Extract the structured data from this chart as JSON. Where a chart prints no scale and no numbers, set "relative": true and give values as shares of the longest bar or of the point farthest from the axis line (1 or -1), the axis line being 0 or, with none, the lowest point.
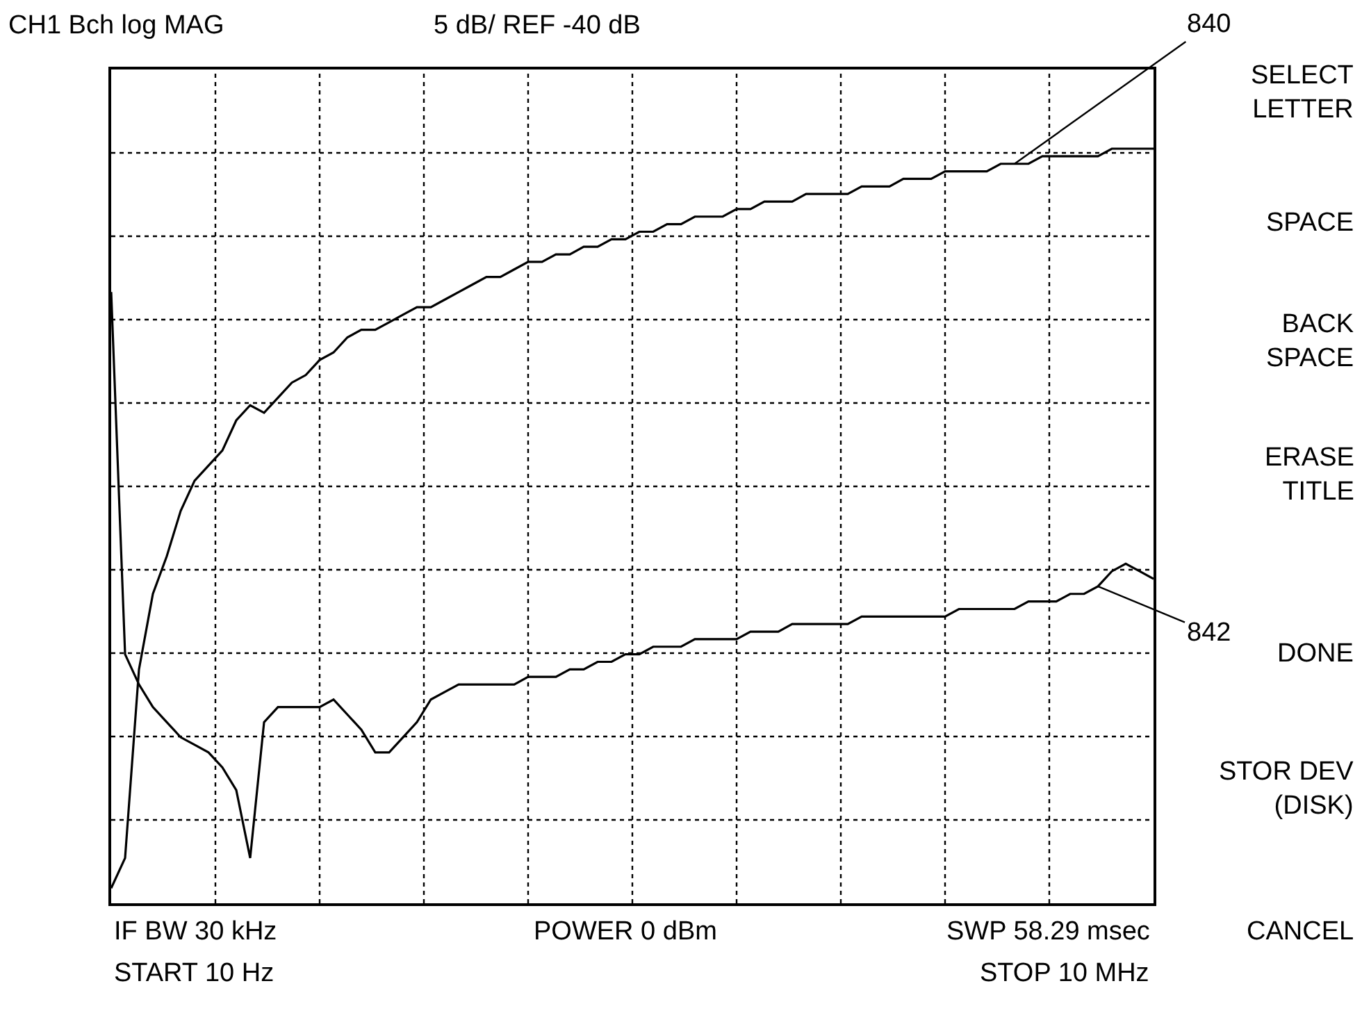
{
  "chart_data": {
    "type": "line",
    "relative": true,
    "grid": true,
    "legend": false,
    "marker": "none",
    "line_style": "solid",
    "title": "CH1 Bch log MAG",
    "subtitle": "5 dB/ REF -40 dB",
    "categories": [
      null,
      null,
      null,
      null,
      null,
      null,
      null,
      null,
      null,
      null,
      null,
      null,
      null,
      null,
      null,
      null,
      null,
      null,
      null,
      null,
      null,
      null,
      null,
      null,
      null,
      null,
      null,
      null,
      null,
      null,
      null,
      null,
      null,
      null,
      null,
      null,
      null,
      null,
      null,
      null,
      null,
      null,
      null,
      null,
      null,
      null,
      null,
      null,
      null,
      null,
      null,
      null,
      null,
      null,
      null,
      null,
      null,
      null,
      null,
      null,
      null,
      null,
      null,
      null,
      null,
      null,
      null,
      null,
      null,
      null,
      null,
      null,
      null,
      null,
      null,
      null
    ],
    "series": [
      {
        "name": "840",
        "color": "#000000",
        "values": [
          0.02,
          0.06,
          0.31,
          0.41,
          0.46,
          0.52,
          0.56,
          0.58,
          0.6,
          0.64,
          0.66,
          0.65,
          0.67,
          0.69,
          0.7,
          0.72,
          0.73,
          0.75,
          0.76,
          0.76,
          0.77,
          0.78,
          0.79,
          0.79,
          0.8,
          0.81,
          0.82,
          0.83,
          0.83,
          0.84,
          0.85,
          0.85,
          0.86,
          0.86,
          0.87,
          0.87,
          0.88,
          0.88,
          0.89,
          0.89,
          0.9,
          0.9,
          0.91,
          0.91,
          0.91,
          0.92,
          0.92,
          0.93,
          0.93,
          0.93,
          0.94,
          0.94,
          0.94,
          0.94,
          0.95,
          0.95,
          0.95,
          0.96,
          0.96,
          0.96,
          0.97,
          0.97,
          0.97,
          0.97,
          0.98,
          0.98,
          0.98,
          0.99,
          0.99,
          0.99,
          0.99,
          0.99,
          1.0,
          1.0,
          1.0,
          1.0
        ]
      },
      {
        "name": "842",
        "color": "#000000",
        "values": [
          0.81,
          0.33,
          0.29,
          0.26,
          0.24,
          0.22,
          0.21,
          0.2,
          0.18,
          0.15,
          0.06,
          0.24,
          0.26,
          0.26,
          0.26,
          0.26,
          0.27,
          0.25,
          0.23,
          0.2,
          0.2,
          0.22,
          0.24,
          0.27,
          0.28,
          0.29,
          0.29,
          0.29,
          0.29,
          0.29,
          0.3,
          0.3,
          0.3,
          0.31,
          0.31,
          0.32,
          0.32,
          0.33,
          0.33,
          0.34,
          0.34,
          0.34,
          0.35,
          0.35,
          0.35,
          0.35,
          0.36,
          0.36,
          0.36,
          0.37,
          0.37,
          0.37,
          0.37,
          0.37,
          0.38,
          0.38,
          0.38,
          0.38,
          0.38,
          0.38,
          0.38,
          0.39,
          0.39,
          0.39,
          0.39,
          0.39,
          0.4,
          0.4,
          0.4,
          0.41,
          0.41,
          0.42,
          0.44,
          0.45,
          0.44,
          0.43
        ]
      }
    ],
    "annotations": [
      "IF BW 30 kHz",
      "START 10 Hz",
      "POWER 0 dBm",
      "SWP 58.29 msec",
      "STOP 10 MHz",
      "SELECT\nLETTER",
      "SPACE",
      "BACK\nSPACE",
      "ERASE\nTITLE",
      "DONE",
      "STOR DEV\n(DISK)",
      "CANCEL"
    ]
  }
}
